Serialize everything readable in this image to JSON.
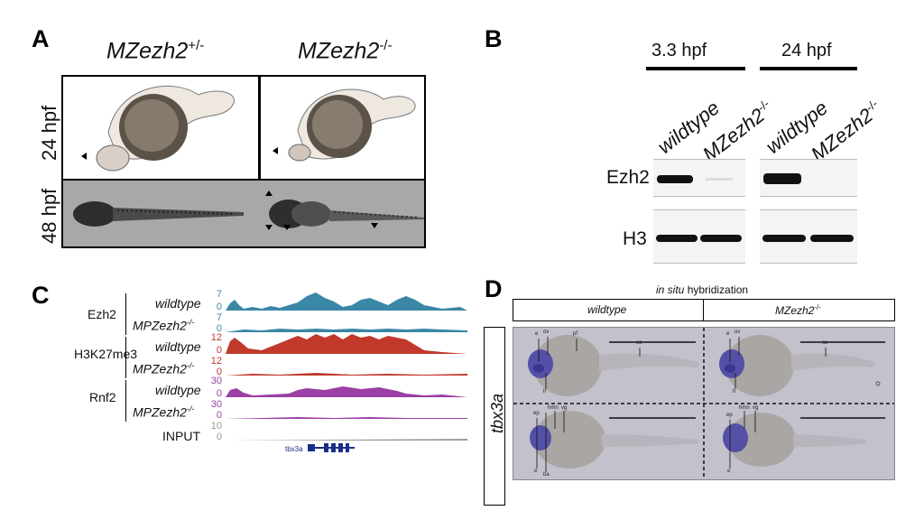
{
  "panels": {
    "A": {
      "letter": "A",
      "col1": {
        "name": "MZezh2",
        "sup": "+/-"
      },
      "col2": {
        "name": "MZezh2",
        "sup": "-/-"
      },
      "row1": "24 hpf",
      "row2": "48 hpf"
    },
    "B": {
      "letter": "B",
      "time1": "3.3 hpf",
      "time2": "24 hpf",
      "lane_wt": "wildtype",
      "lane_mz": {
        "name": "MZezh2",
        "sup": "-/-"
      },
      "row1": "Ezh2",
      "row2": "H3"
    },
    "C": {
      "letter": "C",
      "groups": [
        {
          "name": "Ezh2",
          "wt": "wildtype",
          "mut": {
            "name": "MPZezh2",
            "sup": "-/-"
          },
          "ticks": [
            "7",
            "0",
            "7",
            "0"
          ],
          "color": "#3a87a6"
        },
        {
          "name": "H3K27me3",
          "wt": "wildtype",
          "mut": {
            "name": "MPZezh2",
            "sup": "-/-"
          },
          "ticks": [
            "12",
            "0",
            "12",
            "0"
          ],
          "color": "#c0392b"
        },
        {
          "name": "Rnf2",
          "wt": "wildtype",
          "mut": {
            "name": "MPZezh2",
            "sup": "-/-"
          },
          "ticks": [
            "30",
            "0",
            "30",
            "0"
          ],
          "color": "#9b3fa5"
        }
      ],
      "input": {
        "name": "INPUT",
        "ticks": [
          "10",
          "0"
        ],
        "color": "#999999"
      },
      "gene": "tbx3a",
      "gene_color": "#1a2f8a"
    },
    "D": {
      "letter": "D",
      "title_ital": "in situ",
      "title_rest": " hybridization",
      "col1": "wildtype",
      "col2": {
        "name": "MZezh2",
        "sup": "-/-"
      },
      "row": "tbx3a",
      "labels_top_wt": [
        "e",
        "ov",
        "pf",
        "sc",
        "h"
      ],
      "labels_top_mz": [
        "e",
        "ov",
        "sc",
        "h"
      ],
      "labels_bot_wt": [
        "ep",
        "hmn",
        "vg",
        "e",
        "ba"
      ],
      "labels_bot_mz": [
        "ep",
        "hmn",
        "vg",
        "e"
      ]
    }
  }
}
